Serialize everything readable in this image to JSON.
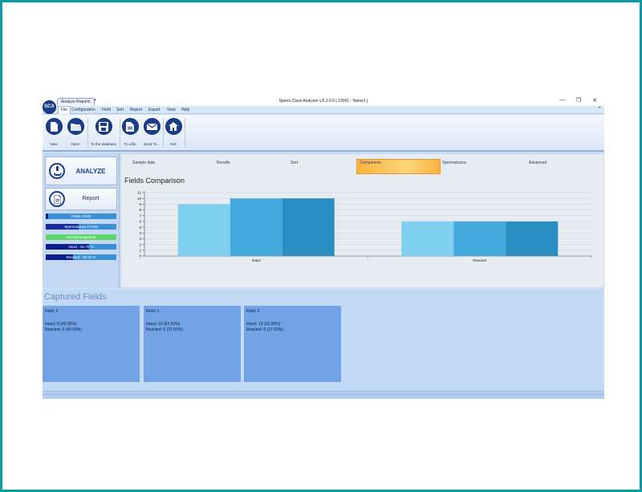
{
  "window": {
    "title": "Sperm Class Analyzer v.6.2.0.0  [ 10001 - Name1 ]",
    "doc_tab": "Analyze  Reports",
    "tab_dropdown": "▾",
    "logo_text": "SCA",
    "controls": [
      "—",
      "❐",
      "✕"
    ]
  },
  "menu": {
    "items": [
      "File",
      "Configuration",
      "Field",
      "Sort",
      "Report",
      "Export",
      "View",
      "Help"
    ],
    "collapse": "⌃"
  },
  "ribbon": {
    "buttons": [
      {
        "label": "New",
        "icon": "new-document-icon"
      },
      {
        "label": "Open",
        "icon": "open-folder-icon"
      },
      {
        "label": "To the database",
        "icon": "save-disk-icon"
      },
      {
        "label": "To a file",
        "icon": "file-export-icon"
      },
      {
        "label": "Send To...",
        "icon": "send-mail-icon"
      },
      {
        "label": "Exit",
        "icon": "home-icon"
      }
    ]
  },
  "left_panel": {
    "analyze_label": "ANALYZE",
    "report_label": "Report",
    "stats": [
      {
        "label": "Fields 3/100",
        "fill": 0.03,
        "fill_color": "#0d1f8a",
        "bg_color": "#3a8fd6"
      },
      {
        "label": "Spermatozoa 47/100",
        "fill": 0.47,
        "fill_color": "#1a2a9e",
        "bg_color": "#3a8fd6"
      },
      {
        "label": "Normozoospermia",
        "fill": 1.0,
        "fill_color": "#5fd66a",
        "bg_color": "#5fd66a"
      },
      {
        "label": "Intact : 61.70 %",
        "fill": 0.617,
        "fill_color": "#0d1f8a",
        "bg_color": "#3a8fd6"
      },
      {
        "label": "Reacted : 38.30 %",
        "fill": 0.383,
        "fill_color": "#0d1f8a",
        "bg_color": "#3a8fd6"
      }
    ]
  },
  "content_tabs": {
    "items": [
      "Sample data",
      "Results",
      "Sort",
      "Comparison",
      "Spermatozoa",
      "Advanced"
    ],
    "active": "Comparison"
  },
  "chart_title": "Fields Comparison",
  "chart_data": {
    "type": "bar",
    "categories": [
      "Intact",
      "Reacted"
    ],
    "series": [
      {
        "values": [
          9,
          6
        ],
        "color": "#7fcfef"
      },
      {
        "values": [
          10,
          6
        ],
        "color": "#43a9dc"
      },
      {
        "values": [
          10,
          6
        ],
        "color": "#2a8ec2"
      }
    ],
    "ylim": [
      0,
      11
    ],
    "yticks": [
      "0",
      "1",
      "2",
      "3",
      "4",
      "5",
      "6",
      "7",
      "8",
      "9",
      "10",
      "11"
    ],
    "grid": true
  },
  "captured": {
    "title": "Captured Fields",
    "fields": [
      {
        "name": "Field: 0",
        "intact": "Intact: 9 (60.00%)",
        "reacted": "Reacted: 6 (40.00%)"
      },
      {
        "name": "Field: 1",
        "intact": "Intact: 10 (62.50%)",
        "reacted": "Reacted: 6 (37.50%)"
      },
      {
        "name": "Field: 2",
        "intact": "Intact: 10 (62.50%)",
        "reacted": "Reacted: 6 (37.50%)"
      }
    ]
  }
}
